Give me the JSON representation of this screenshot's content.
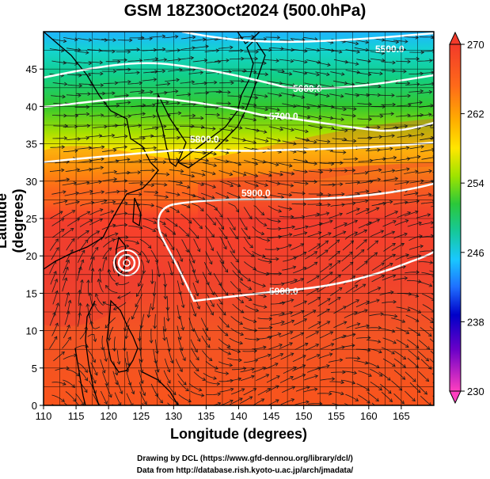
{
  "title": "GSM 18Z30Oct2024 (500.0hPa)",
  "x_axis": {
    "label": "Longitude (degrees)",
    "range": [
      110,
      170
    ],
    "ticks": [
      "110",
      "115",
      "120",
      "125",
      "130",
      "135",
      "140",
      "145",
      "150",
      "155",
      "160",
      "165"
    ]
  },
  "y_axis": {
    "label": "Latitude  (degrees)",
    "range": [
      0,
      50
    ],
    "ticks": [
      "0",
      "5",
      "10",
      "15",
      "20",
      "25",
      "30",
      "35",
      "40",
      "45"
    ]
  },
  "colorbar": {
    "range": [
      230,
      270
    ],
    "ticks": [
      "270",
      "262",
      "254",
      "246",
      "238",
      "230"
    ],
    "colors": [
      "#ff3fbf",
      "#6a00c8",
      "#0000c8",
      "#1f6fff",
      "#19c8ff",
      "#16c89a",
      "#2bc83a",
      "#9ee300",
      "#ffe600",
      "#ffae00",
      "#ff6a19",
      "#f23a2a"
    ]
  },
  "contours": {
    "labels": [
      "5500.0",
      "5600.0",
      "5700.0",
      "5800.0",
      "5900.0",
      "5900.0"
    ],
    "color": "#ffffff"
  },
  "credits": {
    "line1": "Drawing by DCL (https://www.gfd-dennou.org/library/dcl/)",
    "line2": "Data from http://database.rish.kyoto-u.ac.jp/arch/jmadata/"
  }
}
